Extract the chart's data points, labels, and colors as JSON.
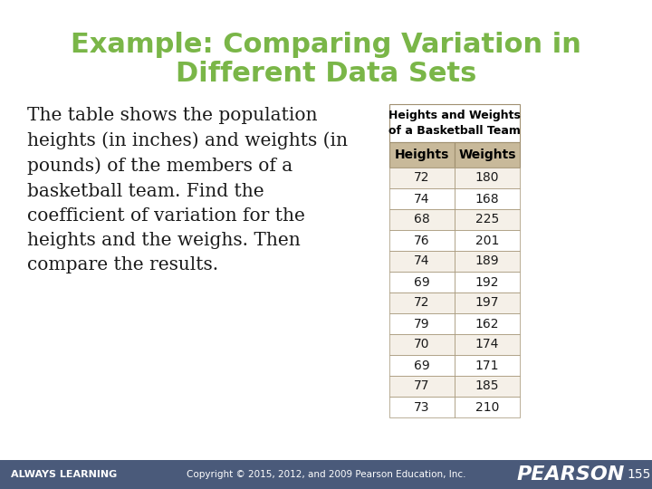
{
  "title_line1": "Example: Comparing Variation in",
  "title_line2": "Different Data Sets",
  "title_color": "#7ab648",
  "body_text": "The table shows the population\nheights (in inches) and weights (in\npounds) of the members of a\nbasketball team. Find the\ncoefficient of variation for the\nheights and the weighs. Then\ncompare the results.",
  "table_title_line1": "Heights and Weights",
  "table_title_line2": "of a Basketball Team",
  "col_headers": [
    "Heights",
    "Weights"
  ],
  "rows": [
    [
      72,
      180
    ],
    [
      74,
      168
    ],
    [
      68,
      225
    ],
    [
      76,
      201
    ],
    [
      74,
      189
    ],
    [
      69,
      192
    ],
    [
      72,
      197
    ],
    [
      79,
      162
    ],
    [
      70,
      174
    ],
    [
      69,
      171
    ],
    [
      77,
      185
    ],
    [
      73,
      210
    ]
  ],
  "header_bg": "#c8b99a",
  "header_text_color": "#000000",
  "row_bg_odd": "#f5f0e8",
  "row_bg_even": "#ffffff",
  "table_border_color": "#a09070",
  "footer_bg": "#4a5a7a",
  "footer_text_color": "#ffffff",
  "footer_left": "ALWAYS LEARNING",
  "footer_center": "Copyright © 2015, 2012, and 2009 Pearson Education, Inc.",
  "footer_right": "PEARSON",
  "footer_page": "155",
  "bg_color": "#ffffff"
}
